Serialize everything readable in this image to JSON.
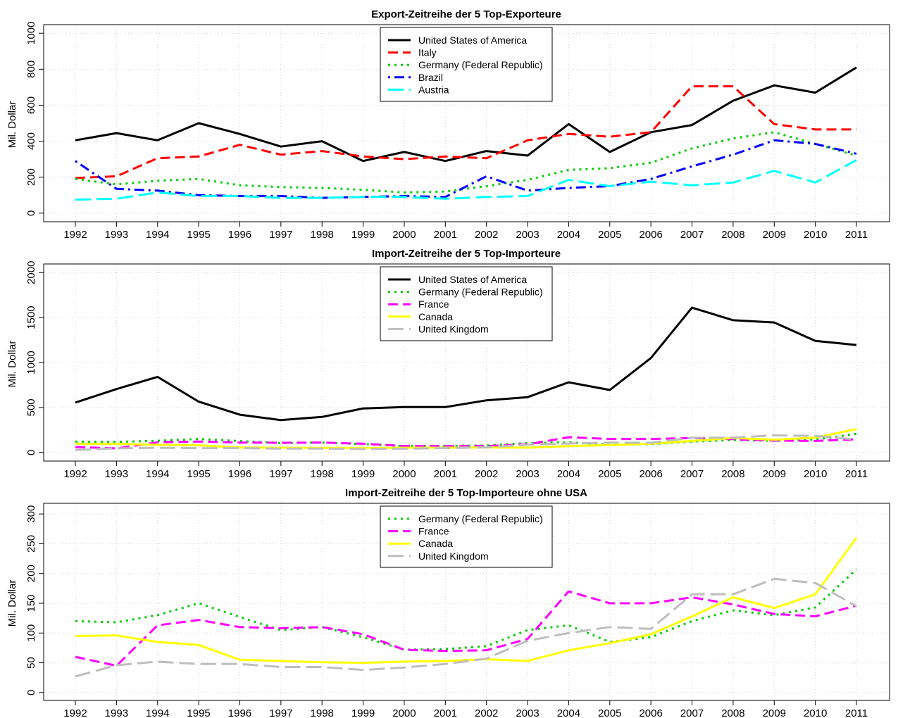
{
  "colors": {
    "usa": "#000000",
    "italy": "#ff0000",
    "germany": "#00cd00",
    "brazil": "#0000ff",
    "austria": "#00ffff",
    "france": "#ff00ff",
    "canada": "#ffff00",
    "uk": "#bebebe",
    "grid": "#d3d3d3"
  },
  "chart_data": [
    {
      "type": "line",
      "title": "Export-Zeitreihe der 5 Top-Exporteure",
      "xlabel": "",
      "ylabel": "Mil. Dollar",
      "x": [
        "1992",
        "1993",
        "1994",
        "1995",
        "1996",
        "1997",
        "1998",
        "1999",
        "2000",
        "2001",
        "2002",
        "2003",
        "2004",
        "2005",
        "2006",
        "2007",
        "2008",
        "2009",
        "2010",
        "2011"
      ],
      "ylim": [
        0,
        1000
      ],
      "yticks": [
        0,
        200,
        400,
        600,
        800,
        1000
      ],
      "grid": true,
      "legend_position": "top-center",
      "series": [
        {
          "name": "United States of America",
          "color": "#000000",
          "dash": "solid",
          "values": [
            405,
            445,
            405,
            500,
            440,
            370,
            400,
            290,
            340,
            290,
            345,
            320,
            495,
            340,
            450,
            490,
            625,
            710,
            670,
            810
          ]
        },
        {
          "name": "Italy",
          "color": "#ff0000",
          "dash": "dashed",
          "values": [
            195,
            205,
            305,
            315,
            380,
            325,
            345,
            315,
            300,
            315,
            305,
            405,
            440,
            425,
            450,
            705,
            705,
            495,
            465,
            465
          ]
        },
        {
          "name": "Germany (Federal Republic)",
          "color": "#00cd00",
          "dash": "dotted",
          "values": [
            190,
            160,
            180,
            190,
            155,
            145,
            140,
            130,
            115,
            120,
            150,
            185,
            240,
            250,
            280,
            360,
            415,
            450,
            385,
            320
          ]
        },
        {
          "name": "Brazil",
          "color": "#0000ff",
          "dash": "dotdash",
          "values": [
            290,
            135,
            125,
            100,
            95,
            95,
            85,
            90,
            95,
            90,
            205,
            125,
            140,
            150,
            190,
            260,
            325,
            405,
            385,
            330
          ]
        },
        {
          "name": "Austria",
          "color": "#00ffff",
          "dash": "longdash",
          "values": [
            75,
            80,
            115,
            95,
            95,
            85,
            85,
            90,
            90,
            80,
            90,
            95,
            185,
            150,
            175,
            155,
            170,
            235,
            170,
            295
          ]
        }
      ]
    },
    {
      "type": "line",
      "title": "Import-Zeitreihe der 5 Top-Importeure",
      "xlabel": "",
      "ylabel": "Mil. Dollar",
      "x": [
        "1992",
        "1993",
        "1994",
        "1995",
        "1996",
        "1997",
        "1998",
        "1999",
        "2000",
        "2001",
        "2002",
        "2003",
        "2004",
        "2005",
        "2006",
        "2007",
        "2008",
        "2009",
        "2010",
        "2011"
      ],
      "ylim": [
        0,
        2000
      ],
      "yticks": [
        0,
        500,
        1000,
        1500,
        2000
      ],
      "grid": true,
      "legend_position": "top-center",
      "series": [
        {
          "name": "United States of America",
          "color": "#000000",
          "dash": "solid",
          "values": [
            555,
            705,
            840,
            565,
            420,
            360,
            395,
            490,
            505,
            505,
            580,
            615,
            780,
            695,
            1050,
            1610,
            1470,
            1445,
            1240,
            1195
          ]
        },
        {
          "name": "Germany (Federal Republic)",
          "color": "#00cd00",
          "dash": "dotted",
          "values": [
            120,
            118,
            130,
            150,
            127,
            105,
            110,
            93,
            72,
            73,
            78,
            105,
            113,
            85,
            93,
            120,
            138,
            130,
            143,
            207
          ]
        },
        {
          "name": "France",
          "color": "#ff00ff",
          "dash": "dashed",
          "values": [
            60,
            45,
            113,
            122,
            110,
            108,
            110,
            98,
            72,
            70,
            71,
            90,
            170,
            150,
            150,
            160,
            148,
            132,
            128,
            146
          ]
        },
        {
          "name": "Canada",
          "color": "#ffff00",
          "dash": "solid",
          "values": [
            95,
            96,
            85,
            80,
            55,
            53,
            51,
            50,
            52,
            53,
            56,
            53,
            71,
            83,
            98,
            128,
            160,
            142,
            165,
            260
          ]
        },
        {
          "name": "United Kingdom",
          "color": "#bebebe",
          "dash": "longdash",
          "values": [
            27,
            46,
            52,
            48,
            48,
            43,
            43,
            38,
            42,
            48,
            57,
            87,
            100,
            110,
            107,
            165,
            165,
            191,
            184,
            145
          ]
        }
      ]
    },
    {
      "type": "line",
      "title": "Import-Zeitreihe der 5 Top-Importeure ohne USA",
      "xlabel": "",
      "ylabel": "Mil. Dollar",
      "x": [
        "1992",
        "1993",
        "1994",
        "1995",
        "1996",
        "1997",
        "1998",
        "1999",
        "2000",
        "2001",
        "2002",
        "2003",
        "2004",
        "2005",
        "2006",
        "2007",
        "2008",
        "2009",
        "2010",
        "2011"
      ],
      "ylim": [
        0,
        300
      ],
      "yticks": [
        0,
        50,
        100,
        150,
        200,
        250,
        300
      ],
      "grid": true,
      "legend_position": "top-center",
      "series": [
        {
          "name": "Germany (Federal Republic)",
          "color": "#00cd00",
          "dash": "dotted",
          "values": [
            120,
            118,
            130,
            150,
            127,
            105,
            110,
            93,
            72,
            73,
            78,
            105,
            113,
            85,
            93,
            120,
            138,
            130,
            143,
            207
          ]
        },
        {
          "name": "France",
          "color": "#ff00ff",
          "dash": "dashed",
          "values": [
            60,
            45,
            113,
            122,
            110,
            108,
            110,
            98,
            72,
            70,
            71,
            90,
            170,
            150,
            150,
            160,
            148,
            132,
            128,
            146
          ]
        },
        {
          "name": "Canada",
          "color": "#ffff00",
          "dash": "solid",
          "values": [
            95,
            96,
            85,
            80,
            55,
            53,
            51,
            50,
            52,
            53,
            56,
            53,
            71,
            83,
            98,
            128,
            160,
            142,
            165,
            260
          ]
        },
        {
          "name": "United Kingdom",
          "color": "#bebebe",
          "dash": "longdash",
          "values": [
            27,
            46,
            52,
            48,
            48,
            43,
            43,
            38,
            42,
            48,
            57,
            87,
            100,
            110,
            107,
            165,
            165,
            191,
            184,
            145
          ]
        }
      ]
    }
  ]
}
